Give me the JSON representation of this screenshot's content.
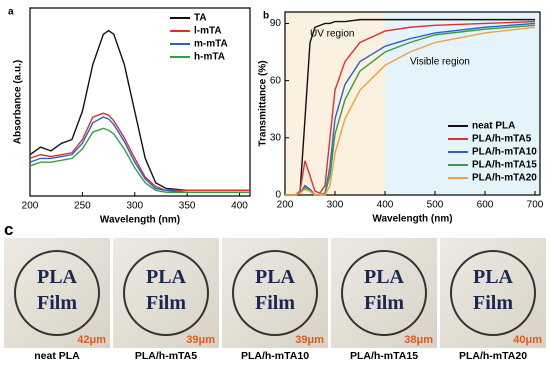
{
  "chart_data": [
    {
      "type": "line",
      "panel_label": "a",
      "xlabel": "Wavelength (nm)",
      "ylabel": "Absorbance (a.u.)",
      "x": [
        200,
        210,
        220,
        230,
        240,
        250,
        260,
        270,
        275,
        280,
        290,
        300,
        310,
        320,
        330,
        350,
        370,
        390,
        410
      ],
      "xlim": [
        200,
        410
      ],
      "xticks": [
        200,
        250,
        300,
        350,
        400
      ],
      "ylim": [
        0,
        1
      ],
      "legend": "upper-right",
      "series": [
        {
          "name": "TA",
          "color": "#111111",
          "values": [
            0.22,
            0.26,
            0.24,
            0.28,
            0.3,
            0.45,
            0.7,
            0.86,
            0.88,
            0.86,
            0.7,
            0.45,
            0.2,
            0.07,
            0.04,
            0.03,
            0.03,
            0.03,
            0.03
          ]
        },
        {
          "name": "l-mTA",
          "color": "#e03030",
          "values": [
            0.2,
            0.22,
            0.21,
            0.22,
            0.23,
            0.3,
            0.42,
            0.44,
            0.43,
            0.4,
            0.31,
            0.2,
            0.1,
            0.05,
            0.03,
            0.03,
            0.03,
            0.03,
            0.03
          ]
        },
        {
          "name": "m-mTA",
          "color": "#3060d0",
          "values": [
            0.18,
            0.2,
            0.2,
            0.21,
            0.22,
            0.28,
            0.39,
            0.42,
            0.41,
            0.38,
            0.29,
            0.18,
            0.09,
            0.04,
            0.03,
            0.02,
            0.02,
            0.02,
            0.02
          ]
        },
        {
          "name": "h-mTA",
          "color": "#30a040",
          "values": [
            0.16,
            0.18,
            0.18,
            0.19,
            0.2,
            0.25,
            0.34,
            0.36,
            0.35,
            0.33,
            0.25,
            0.15,
            0.07,
            0.03,
            0.02,
            0.02,
            0.02,
            0.02,
            0.02
          ]
        }
      ]
    },
    {
      "type": "line",
      "panel_label": "b",
      "xlabel": "Wavelength (nm)",
      "ylabel": "Transmittance (%)",
      "x": [
        200,
        220,
        230,
        240,
        250,
        260,
        270,
        280,
        290,
        300,
        320,
        350,
        400,
        450,
        500,
        600,
        700
      ],
      "xlim": [
        200,
        710
      ],
      "xticks": [
        200,
        300,
        400,
        500,
        600,
        700
      ],
      "ylim": [
        0,
        96
      ],
      "yticks": [
        0,
        30,
        60,
        90
      ],
      "legend": "lower-right",
      "regions": [
        {
          "name": "UV region",
          "xlim": [
            200,
            400
          ],
          "color": "#fbf1e0"
        },
        {
          "name": "Visible region",
          "xlim": [
            400,
            710
          ],
          "color": "#e4f4fa"
        }
      ],
      "series": [
        {
          "name": "neat PLA",
          "color": "#111111",
          "values": [
            0,
            0,
            1,
            40,
            80,
            88,
            89,
            90,
            90,
            91,
            91,
            92,
            92,
            92,
            92,
            92,
            92
          ]
        },
        {
          "name": "PLA/h-mTA5",
          "color": "#e03030",
          "values": [
            0,
            0,
            2,
            18,
            10,
            2,
            1,
            5,
            30,
            55,
            70,
            80,
            86,
            88,
            89,
            90,
            91
          ]
        },
        {
          "name": "PLA/h-mTA10",
          "color": "#3060d0",
          "values": [
            0,
            0,
            1,
            5,
            3,
            0,
            0,
            1,
            15,
            40,
            58,
            70,
            78,
            82,
            85,
            88,
            90
          ]
        },
        {
          "name": "PLA/h-mTA15",
          "color": "#30a040",
          "values": [
            0,
            0,
            1,
            4,
            2,
            0,
            0,
            1,
            10,
            32,
            50,
            65,
            75,
            80,
            84,
            87,
            89
          ]
        },
        {
          "name": "PLA/h-mTA20",
          "color": "#f0a040",
          "values": [
            0,
            0,
            1,
            3,
            2,
            0,
            0,
            0,
            5,
            22,
            40,
            55,
            68,
            75,
            80,
            85,
            88
          ]
        }
      ]
    }
  ],
  "panel_c": {
    "label": "c",
    "samples": [
      {
        "line1": "PLA",
        "line2": "Film",
        "thickness": "42μm",
        "caption": "neat PLA"
      },
      {
        "line1": "PLA",
        "line2": "Film",
        "thickness": "39μm",
        "caption": "PLA/h-mTA5"
      },
      {
        "line1": "PLA",
        "line2": "Film",
        "thickness": "39μm",
        "caption": "PLA/h-mTA10"
      },
      {
        "line1": "PLA",
        "line2": "Film",
        "thickness": "38μm",
        "caption": "PLA/h-mTA15"
      },
      {
        "line1": "PLA",
        "line2": "Film",
        "thickness": "40μm",
        "caption": "PLA/h-mTA20"
      }
    ]
  }
}
